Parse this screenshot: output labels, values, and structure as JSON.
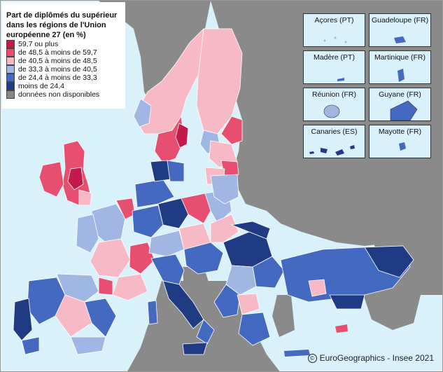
{
  "legend": {
    "title": "Part de diplômés du supérieur dans les régions de l'Union européenne 27 (en %)",
    "items": [
      {
        "label": "59,7 ou plus",
        "color": "#c41a4b"
      },
      {
        "label": "de 48,5 à moins de 59,7",
        "color": "#e64f6f"
      },
      {
        "label": "de 40,5 à moins de 48,5",
        "color": "#f6b9c5"
      },
      {
        "label": "de 33,3 à moins de 40,5",
        "color": "#a0b7e4"
      },
      {
        "label": "de 24,4 à moins de 33,3",
        "color": "#4369c1"
      },
      {
        "label": "moins de 24,4",
        "color": "#1e3b84"
      },
      {
        "label": "données non disponibles",
        "color": "#868686"
      }
    ]
  },
  "insets": [
    {
      "name": "Açores (PT)"
    },
    {
      "name": "Guadeloupe (FR)"
    },
    {
      "name": "Madère (PT)"
    },
    {
      "name": "Martinique (FR)"
    },
    {
      "name": "Réunion (FR)"
    },
    {
      "name": "Guyane (FR)"
    },
    {
      "name": "Canaries (ES)"
    },
    {
      "name": "Mayotte (FR)"
    }
  ],
  "credit": "EuroGeographics - Insee 2021",
  "colors": {
    "sea": "#d8f1fb",
    "non_eu": "#8a8a8a",
    "border": "#ffffff"
  }
}
